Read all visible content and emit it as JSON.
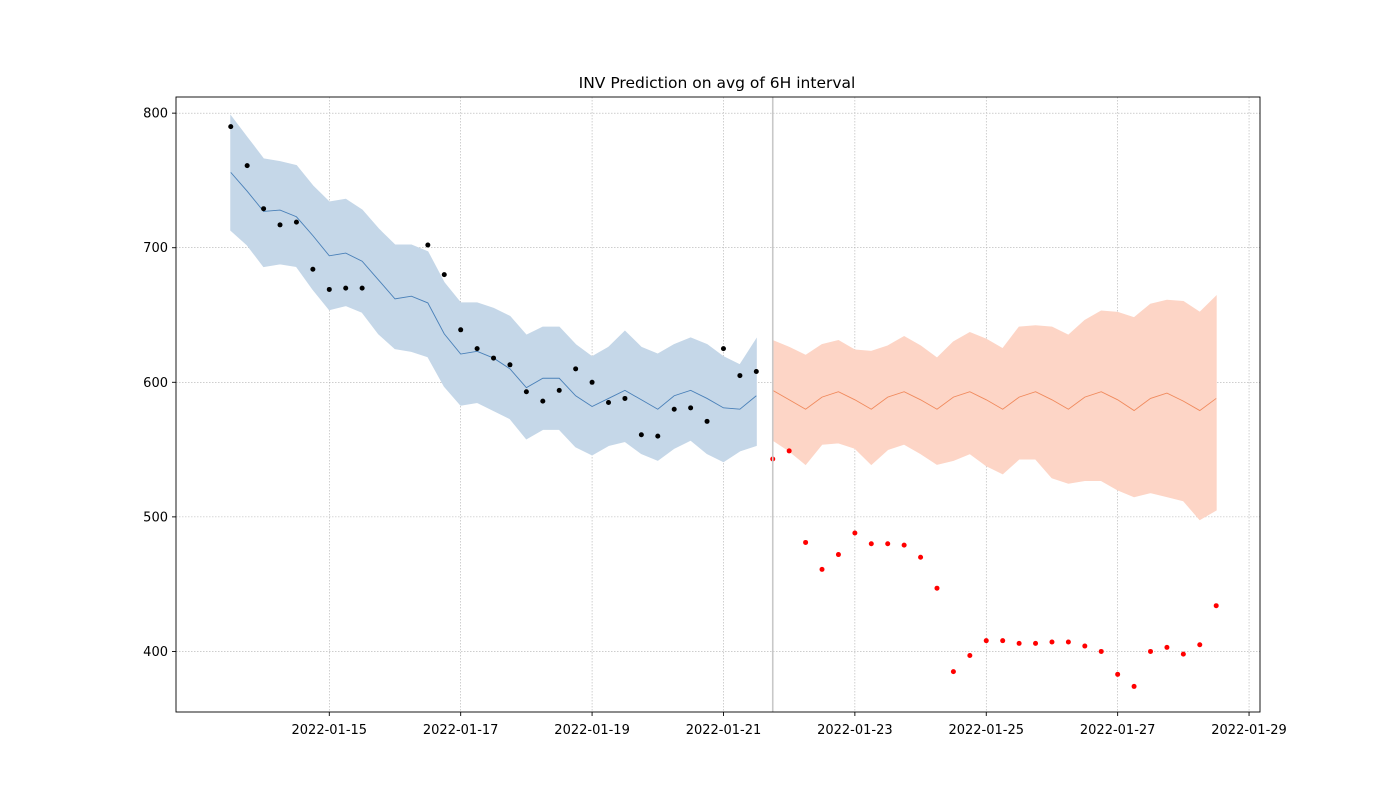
{
  "chart_data": {
    "type": "line",
    "title": "INV Prediction on avg of 6H interval",
    "xlabel": "",
    "ylabel": "",
    "x_axis": "datetime",
    "xlim": [
      "2022-01-12T16:00:00",
      "2022-01-29T04:00:00"
    ],
    "ylim": [
      355,
      812
    ],
    "x_ticks": [
      "2022-01-15",
      "2022-01-17",
      "2022-01-19",
      "2022-01-21",
      "2022-01-23",
      "2022-01-25",
      "2022-01-27",
      "2022-01-29"
    ],
    "y_ticks": [
      400,
      500,
      600,
      700,
      800
    ],
    "grid": true,
    "split_marker": "2022-01-21T18:00:00",
    "colors": {
      "train_band": "#c5d7e8",
      "train_line": "#4a80b8",
      "train_points": "#000000",
      "forecast_band": "#fdd5c6",
      "forecast_line": "#f08a5d",
      "actual_points": "#ff0000",
      "split_line": "#c8c8c8"
    },
    "series": [
      {
        "name": "",
        "kind": "band",
        "x": [
          "2022-01-13T12:00",
          "2022-01-13T18:00",
          "2022-01-14T00:00",
          "2022-01-14T06:00",
          "2022-01-14T12:00",
          "2022-01-14T18:00",
          "2022-01-15T00:00",
          "2022-01-15T06:00",
          "2022-01-15T12:00",
          "2022-01-15T18:00",
          "2022-01-16T00:00",
          "2022-01-16T06:00",
          "2022-01-16T12:00",
          "2022-01-16T18:00",
          "2022-01-17T00:00",
          "2022-01-17T06:00",
          "2022-01-17T12:00",
          "2022-01-17T18:00",
          "2022-01-18T00:00",
          "2022-01-18T06:00",
          "2022-01-18T12:00",
          "2022-01-18T18:00",
          "2022-01-19T00:00",
          "2022-01-19T06:00",
          "2022-01-19T12:00",
          "2022-01-19T18:00",
          "2022-01-20T00:00",
          "2022-01-20T06:00",
          "2022-01-20T12:00",
          "2022-01-20T18:00",
          "2022-01-21T00:00",
          "2022-01-21T06:00",
          "2022-01-21T12:00"
        ],
        "upper": [
          798,
          782,
          766,
          764,
          761,
          746,
          734,
          736,
          728,
          714,
          702,
          702,
          697,
          674,
          659,
          659,
          655,
          649,
          635,
          641,
          641,
          628,
          619,
          626,
          638,
          626,
          621,
          628,
          633,
          628,
          619,
          613,
          632
        ],
        "lower": [
          713,
          702,
          686,
          688,
          686,
          669,
          654,
          657,
          652,
          636,
          625,
          623,
          619,
          597,
          583,
          585,
          579,
          573,
          558,
          565,
          565,
          552,
          546,
          553,
          556,
          547,
          542,
          551,
          557,
          547,
          541,
          549,
          553
        ]
      },
      {
        "name": "",
        "kind": "line",
        "x": [
          "2022-01-13T12:00",
          "2022-01-13T18:00",
          "2022-01-14T00:00",
          "2022-01-14T06:00",
          "2022-01-14T12:00",
          "2022-01-14T18:00",
          "2022-01-15T00:00",
          "2022-01-15T06:00",
          "2022-01-15T12:00",
          "2022-01-15T18:00",
          "2022-01-16T00:00",
          "2022-01-16T06:00",
          "2022-01-16T12:00",
          "2022-01-16T18:00",
          "2022-01-17T00:00",
          "2022-01-17T06:00",
          "2022-01-17T12:00",
          "2022-01-17T18:00",
          "2022-01-18T00:00",
          "2022-01-18T06:00",
          "2022-01-18T12:00",
          "2022-01-18T18:00",
          "2022-01-19T00:00",
          "2022-01-19T06:00",
          "2022-01-19T12:00",
          "2022-01-19T18:00",
          "2022-01-20T00:00",
          "2022-01-20T06:00",
          "2022-01-20T12:00",
          "2022-01-20T18:00",
          "2022-01-21T00:00",
          "2022-01-21T06:00",
          "2022-01-21T12:00"
        ],
        "values": [
          756,
          742,
          727,
          728,
          723,
          709,
          694,
          696,
          690,
          676,
          662,
          664,
          659,
          636,
          621,
          623,
          618,
          610,
          596,
          603,
          603,
          590,
          582,
          588,
          594,
          587,
          580,
          590,
          594,
          588,
          581,
          580,
          590
        ]
      },
      {
        "name": "",
        "kind": "points",
        "x": [
          "2022-01-13T12:00",
          "2022-01-13T18:00",
          "2022-01-14T00:00",
          "2022-01-14T06:00",
          "2022-01-14T12:00",
          "2022-01-14T18:00",
          "2022-01-15T00:00",
          "2022-01-15T06:00",
          "2022-01-15T12:00",
          "2022-01-16T12:00",
          "2022-01-16T18:00",
          "2022-01-17T00:00",
          "2022-01-17T06:00",
          "2022-01-17T12:00",
          "2022-01-17T18:00",
          "2022-01-18T00:00",
          "2022-01-18T06:00",
          "2022-01-18T12:00",
          "2022-01-18T18:00",
          "2022-01-19T00:00",
          "2022-01-19T06:00",
          "2022-01-19T12:00",
          "2022-01-19T18:00",
          "2022-01-20T00:00",
          "2022-01-20T06:00",
          "2022-01-20T12:00",
          "2022-01-20T18:00",
          "2022-01-21T00:00",
          "2022-01-21T06:00",
          "2022-01-21T12:00"
        ],
        "values": [
          790,
          761,
          729,
          717,
          719,
          684,
          669,
          670,
          670,
          702,
          680,
          639,
          625,
          618,
          613,
          593,
          586,
          594,
          610,
          600,
          585,
          588,
          561,
          560,
          580,
          581,
          571,
          625,
          605,
          608
        ]
      },
      {
        "name": "",
        "kind": "band",
        "x": [
          "2022-01-21T18:00",
          "2022-01-22T00:00",
          "2022-01-22T06:00",
          "2022-01-22T12:00",
          "2022-01-22T18:00",
          "2022-01-23T00:00",
          "2022-01-23T06:00",
          "2022-01-23T12:00",
          "2022-01-23T18:00",
          "2022-01-24T00:00",
          "2022-01-24T06:00",
          "2022-01-24T12:00",
          "2022-01-24T18:00",
          "2022-01-25T00:00",
          "2022-01-25T06:00",
          "2022-01-25T12:00",
          "2022-01-25T18:00",
          "2022-01-26T00:00",
          "2022-01-26T06:00",
          "2022-01-26T12:00",
          "2022-01-26T18:00",
          "2022-01-27T00:00",
          "2022-01-27T06:00",
          "2022-01-27T12:00",
          "2022-01-27T18:00",
          "2022-01-28T00:00",
          "2022-01-28T06:00",
          "2022-01-28T12:00"
        ],
        "upper": [
          631,
          626,
          620,
          628,
          631,
          624,
          623,
          627,
          634,
          627,
          618,
          630,
          637,
          632,
          625,
          641,
          642,
          641,
          635,
          646,
          653,
          652,
          648,
          658,
          661,
          660,
          652,
          664
        ],
        "lower": [
          557,
          549,
          539,
          554,
          555,
          551,
          539,
          550,
          554,
          547,
          539,
          542,
          547,
          538,
          532,
          543,
          543,
          529,
          525,
          527,
          527,
          520,
          515,
          518,
          515,
          512,
          498,
          505
        ]
      },
      {
        "name": "",
        "kind": "line",
        "x": [
          "2022-01-21T18:00",
          "2022-01-22T00:00",
          "2022-01-22T06:00",
          "2022-01-22T12:00",
          "2022-01-22T18:00",
          "2022-01-23T00:00",
          "2022-01-23T06:00",
          "2022-01-23T12:00",
          "2022-01-23T18:00",
          "2022-01-24T00:00",
          "2022-01-24T06:00",
          "2022-01-24T12:00",
          "2022-01-24T18:00",
          "2022-01-25T00:00",
          "2022-01-25T06:00",
          "2022-01-25T12:00",
          "2022-01-25T18:00",
          "2022-01-26T00:00",
          "2022-01-26T06:00",
          "2022-01-26T12:00",
          "2022-01-26T18:00",
          "2022-01-27T00:00",
          "2022-01-27T06:00",
          "2022-01-27T12:00",
          "2022-01-27T18:00",
          "2022-01-28T00:00",
          "2022-01-28T06:00",
          "2022-01-28T12:00"
        ],
        "values": [
          594,
          587,
          580,
          589,
          593,
          587,
          580,
          589,
          593,
          587,
          580,
          589,
          593,
          587,
          580,
          589,
          593,
          587,
          580,
          589,
          593,
          587,
          579,
          588,
          592,
          586,
          579,
          588
        ]
      },
      {
        "name": "",
        "kind": "points",
        "x": [
          "2022-01-21T18:00",
          "2022-01-22T00:00",
          "2022-01-22T06:00",
          "2022-01-22T12:00",
          "2022-01-22T18:00",
          "2022-01-23T00:00",
          "2022-01-23T06:00",
          "2022-01-23T12:00",
          "2022-01-23T18:00",
          "2022-01-24T00:00",
          "2022-01-24T06:00",
          "2022-01-24T12:00",
          "2022-01-24T18:00",
          "2022-01-25T00:00",
          "2022-01-25T06:00",
          "2022-01-25T12:00",
          "2022-01-25T18:00",
          "2022-01-26T00:00",
          "2022-01-26T06:00",
          "2022-01-26T12:00",
          "2022-01-26T18:00",
          "2022-01-27T00:00",
          "2022-01-27T06:00",
          "2022-01-27T12:00",
          "2022-01-27T18:00",
          "2022-01-28T00:00",
          "2022-01-28T06:00",
          "2022-01-28T12:00"
        ],
        "values": [
          543,
          549,
          481,
          461,
          472,
          488,
          480,
          480,
          479,
          470,
          447,
          385,
          397,
          408,
          408,
          406,
          406,
          407,
          407,
          404,
          400,
          383,
          374,
          400,
          403,
          398,
          405,
          434
        ]
      }
    ]
  }
}
